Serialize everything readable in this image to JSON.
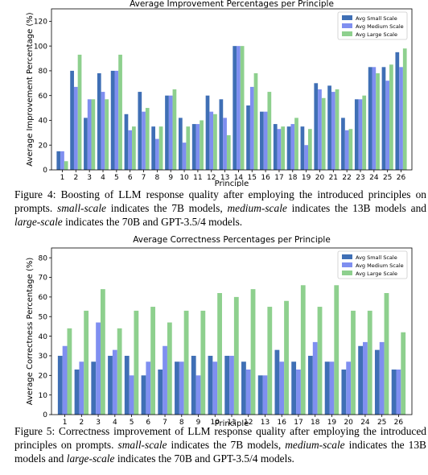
{
  "figures": [
    {
      "caption_runs": [
        {
          "t": "Figure 4: Boosting of LLM response quality after employing the introduced principles on prompts.  "
        },
        {
          "t": "small-scale",
          "i": true
        },
        {
          "t": " indicates the 7B models, "
        },
        {
          "t": "medium-scale",
          "i": true
        },
        {
          "t": " indicates the 13B models and "
        },
        {
          "t": "large-scale",
          "i": true
        },
        {
          "t": " indicates the 70B and GPT-3.5/4 models."
        }
      ]
    },
    {
      "caption_runs": [
        {
          "t": "Figure 5:  Correctness improvement of LLM response quality after employing the introduced principles on prompts. "
        },
        {
          "t": "small-scale",
          "i": true
        },
        {
          "t": " indicates the 7B models, "
        },
        {
          "t": "medium-scale",
          "i": true
        },
        {
          "t": " indicates the 13B models and "
        },
        {
          "t": "large-scale",
          "i": true
        },
        {
          "t": " indicates the 70B and GPT-3.5/4 models."
        }
      ]
    }
  ],
  "chart_data": [
    {
      "type": "bar",
      "title": "Average Improvement Percentages per Principle",
      "xlabel": "Principle",
      "ylabel": "Average Improvement Percentage (%)",
      "ylim": [
        0,
        130
      ],
      "yticks": [
        0,
        20,
        40,
        60,
        80,
        100,
        120
      ],
      "legend_position": "top-right",
      "grid": false,
      "categories": [
        "1",
        "2",
        "3",
        "4",
        "5",
        "6",
        "7",
        "8",
        "9",
        "10",
        "11",
        "12",
        "13",
        "14",
        "15",
        "16",
        "17",
        "18",
        "19",
        "20",
        "21",
        "22",
        "23",
        "24",
        "25",
        "26"
      ],
      "series": [
        {
          "name": "Avg Small Scale",
          "color": "#3f6fb5",
          "values": [
            15,
            80,
            42,
            78,
            80,
            45,
            63,
            35,
            60,
            42,
            37,
            60,
            57,
            100,
            52,
            47,
            37,
            35,
            35,
            70,
            68,
            42,
            57,
            83,
            83,
            95
          ]
        },
        {
          "name": "Avg Medium Scale",
          "color": "#7f8ff0",
          "values": [
            15,
            67,
            57,
            63,
            80,
            32,
            47,
            25,
            60,
            22,
            37,
            47,
            42,
            100,
            67,
            47,
            33,
            37,
            20,
            65,
            63,
            32,
            57,
            83,
            72,
            83
          ]
        },
        {
          "name": "Avg Large Scale",
          "color": "#8ed08e",
          "values": [
            7,
            93,
            57,
            57,
            93,
            35,
            50,
            35,
            65,
            35,
            40,
            45,
            28,
            100,
            78,
            63,
            35,
            42,
            33,
            58,
            65,
            33,
            60,
            78,
            85,
            98
          ]
        }
      ]
    },
    {
      "type": "bar",
      "title": "Average Correctness Percentages per Principle",
      "xlabel": "Principle",
      "ylabel": "Average Correctness Percentage (%)",
      "ylim": [
        0,
        85
      ],
      "yticks": [
        0,
        10,
        20,
        30,
        40,
        50,
        60,
        70,
        80
      ],
      "legend_position": "top-right",
      "grid": false,
      "categories": [
        "1",
        "2",
        "3",
        "4",
        "5",
        "6",
        "7",
        "8",
        "9",
        "10",
        "11",
        "12",
        "13",
        "16",
        "17",
        "18",
        "19",
        "20",
        "24",
        "25",
        "26"
      ],
      "series": [
        {
          "name": "Avg Small Scale",
          "color": "#3f6fb5",
          "values": [
            30,
            23,
            27,
            30,
            30,
            20,
            23,
            27,
            30,
            30,
            30,
            27,
            20,
            33,
            27,
            30,
            27,
            23,
            35,
            33,
            23
          ]
        },
        {
          "name": "Avg Medium Scale",
          "color": "#7f8ff0",
          "values": [
            35,
            27,
            47,
            33,
            20,
            27,
            35,
            27,
            20,
            27,
            30,
            23,
            20,
            27,
            23,
            37,
            27,
            27,
            37,
            37,
            23
          ]
        },
        {
          "name": "Avg Large Scale",
          "color": "#8ed08e",
          "values": [
            44,
            53,
            64,
            44,
            53,
            55,
            47,
            53,
            53,
            62,
            60,
            64,
            55,
            58,
            66,
            55,
            66,
            53,
            53,
            62,
            42
          ]
        }
      ]
    }
  ]
}
